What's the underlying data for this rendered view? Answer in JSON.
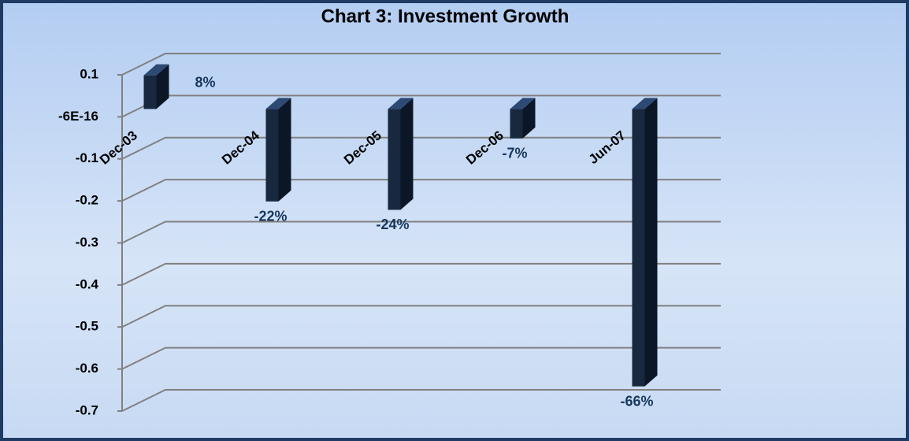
{
  "chart_data": {
    "type": "bar3d",
    "title": "Chart 3:  Investment Growth",
    "categories": [
      "Dec-03",
      "Dec-04",
      "Dec-05",
      "Dec-06",
      "Jun-07"
    ],
    "values": [
      0.08,
      -0.22,
      -0.24,
      -0.07,
      -0.66
    ],
    "value_labels": [
      "8%",
      "-22%",
      "-24%",
      "-7%",
      "-66%"
    ],
    "color": "#17283f",
    "ylim": [
      -0.7,
      0.1
    ],
    "yticks": [
      0.1,
      {
        "value": -6e-16,
        "label": "-6E-16"
      },
      -0.1,
      -0.2,
      -0.3,
      -0.4,
      -0.5,
      -0.6,
      -0.7
    ],
    "grid": true
  }
}
